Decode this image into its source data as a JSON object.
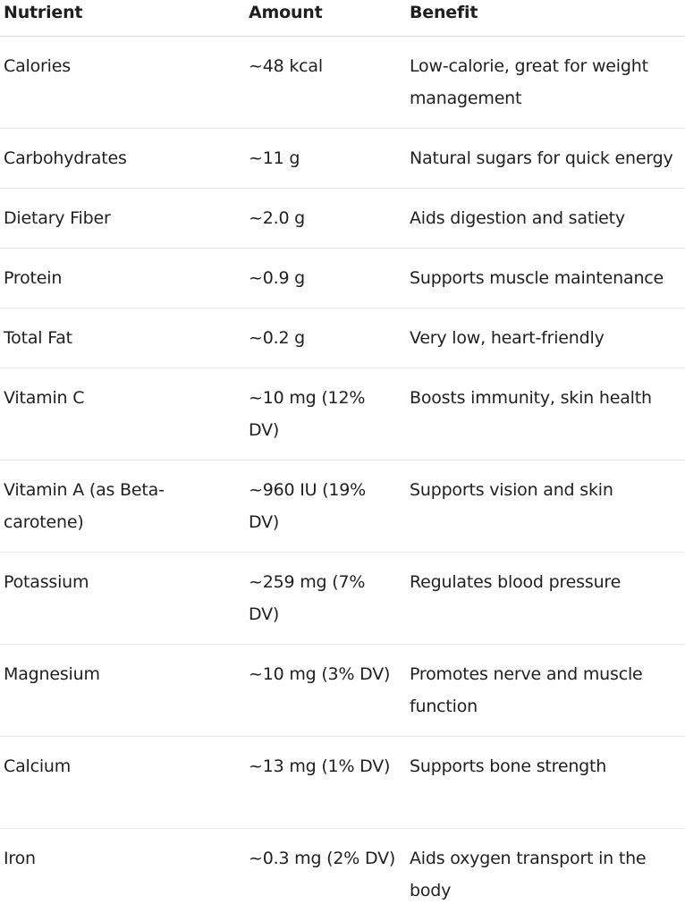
{
  "table": {
    "headers": [
      "Nutrient",
      "Amount",
      "Benefit"
    ],
    "rows": [
      {
        "nutrient": "Calories",
        "amount": "~48 kcal",
        "benefit": "Low-calorie, great for weight management"
      },
      {
        "nutrient": "Carbohydrates",
        "amount": "~11 g",
        "benefit": "Natural sugars for quick energy"
      },
      {
        "nutrient": "Dietary Fiber",
        "amount": "~2.0 g",
        "benefit": "Aids digestion and satiety"
      },
      {
        "nutrient": "Protein",
        "amount": "~0.9 g",
        "benefit": "Supports muscle maintenance"
      },
      {
        "nutrient": "Total Fat",
        "amount": "~0.2 g",
        "benefit": "Very low, heart-friendly"
      },
      {
        "nutrient": "Vitamin C",
        "amount": "~10 mg (12% DV)",
        "benefit": "Boosts immunity, skin health"
      },
      {
        "nutrient": "Vitamin A (as Beta-carotene)",
        "amount": "~960 IU (19% DV)",
        "benefit": "Supports vision and skin"
      },
      {
        "nutrient": "Potassium",
        "amount": "~259 mg (7% DV)",
        "benefit": "Regulates blood pressure"
      },
      {
        "nutrient": "Magnesium",
        "amount": "~10 mg (3% DV)",
        "benefit": "Promotes nerve and muscle function"
      },
      {
        "nutrient": "Calcium",
        "amount": "~13 mg (1% DV)",
        "benefit": "Supports bone strength"
      },
      {
        "nutrient": "Iron",
        "amount": "~0.3 mg (2% DV)",
        "benefit": "Aids oxygen transport in the body"
      }
    ]
  }
}
